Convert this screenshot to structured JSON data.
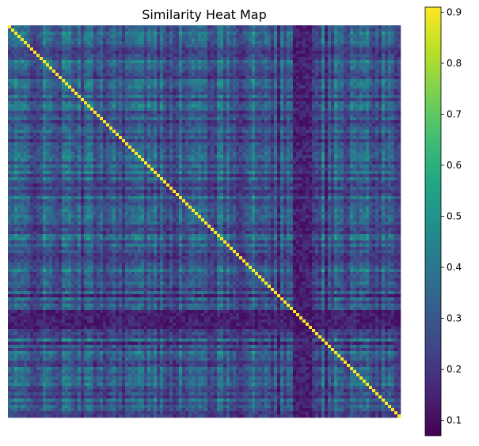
{
  "chart_data": {
    "type": "heatmap",
    "title": "Similarity Heat Map",
    "xlabel": "",
    "ylabel": "",
    "colormap": "viridis",
    "value_range": [
      0.07,
      0.91
    ],
    "diagonal_value": 0.91,
    "typical_off_diagonal_range": [
      0.1,
      0.6
    ],
    "colorbar": {
      "ticks": [
        0.1,
        0.2,
        0.3,
        0.4,
        0.5,
        0.6,
        0.7,
        0.8,
        0.9
      ],
      "tick_labels": [
        "0.1",
        "0.2",
        "0.3",
        "0.4",
        "0.5",
        "0.6",
        "0.7",
        "0.8",
        "0.9"
      ],
      "placement": "right"
    },
    "axes_visible": false
  }
}
